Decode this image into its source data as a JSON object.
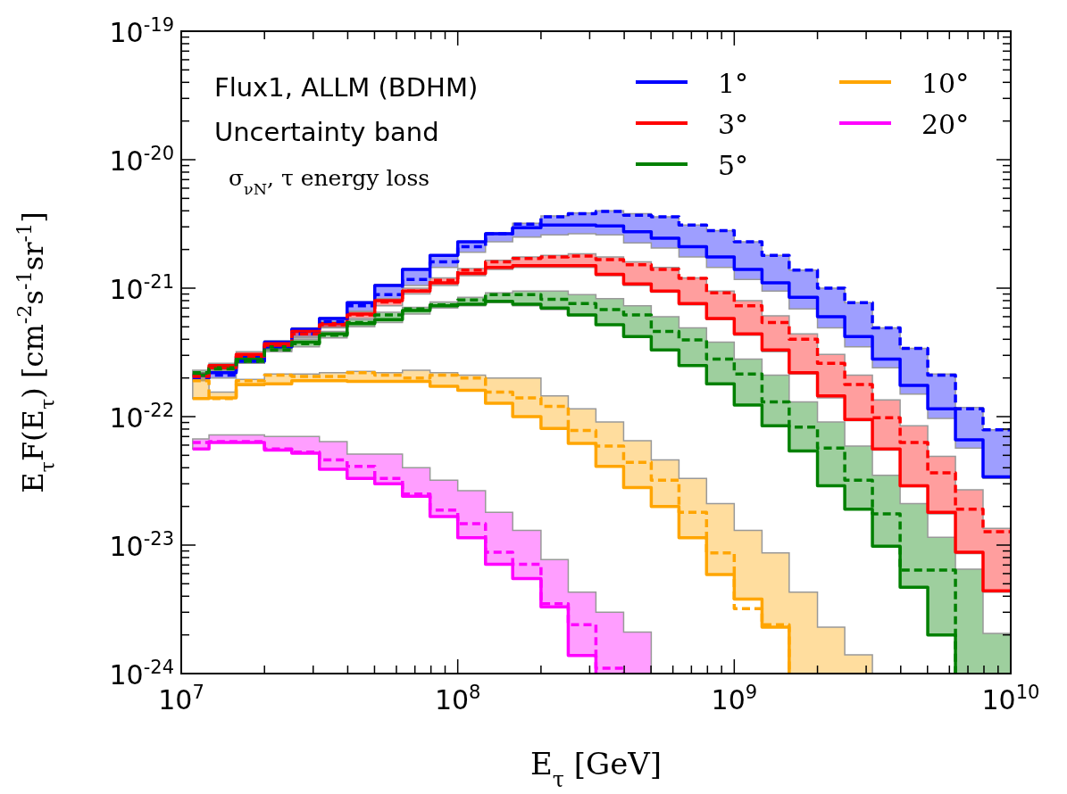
{
  "chart_data": {
    "type": "step",
    "xlabel": "E$_{τ}$ [GeV]",
    "ylabel": "E$_{τ}$F(E$_{τ}$) [cm$^{-2}$s$^{-1}$sr$^{-1}$]",
    "annotations": [
      "Flux1, ALLM (BDHM)",
      "Uncertainty band",
      "σ$_{νN}$, τ energy loss"
    ],
    "log": "xy",
    "legend": "top right",
    "xlim": [
      10000000.0,
      10000000000.0
    ],
    "ylim": [
      1e-24,
      1e-19
    ],
    "xticks": [
      {
        "value": 10000000.0,
        "label": "10$^{7}$"
      },
      {
        "value": 20000000.0,
        "label": null
      },
      {
        "value": 30000000.0,
        "label": null
      },
      {
        "value": 40000000.0,
        "label": null
      },
      {
        "value": 50000000.0,
        "label": null
      },
      {
        "value": 60000000.0,
        "label": null
      },
      {
        "value": 70000000.0,
        "label": null
      },
      {
        "value": 80000000.0,
        "label": null
      },
      {
        "value": 90000000.0,
        "label": null
      },
      {
        "value": 100000000.0,
        "label": "10$^{8}$"
      },
      {
        "value": 200000000.0,
        "label": null
      },
      {
        "value": 300000000.0,
        "label": null
      },
      {
        "value": 400000000.0,
        "label": null
      },
      {
        "value": 500000000.0,
        "label": null
      },
      {
        "value": 600000000.0,
        "label": null
      },
      {
        "value": 700000000.0,
        "label": null
      },
      {
        "value": 800000000.0,
        "label": null
      },
      {
        "value": 900000000.0,
        "label": null
      },
      {
        "value": 1000000000.0,
        "label": "10$^{9}$"
      },
      {
        "value": 2000000000.0,
        "label": null
      },
      {
        "value": 3000000000.0,
        "label": null
      },
      {
        "value": 4000000000.0,
        "label": null
      },
      {
        "value": 5000000000.0,
        "label": null
      },
      {
        "value": 6000000000.0,
        "label": null
      },
      {
        "value": 7000000000.0,
        "label": null
      },
      {
        "value": 8000000000.0,
        "label": null
      },
      {
        "value": 9000000000.0,
        "label": null
      },
      {
        "value": 10000000000.0,
        "label": "10$^{10}$"
      }
    ],
    "yticks": [
      {
        "value": 1e-24,
        "label": "10$^{-24}$"
      },
      {
        "value": 2e-24,
        "label": null
      },
      {
        "value": 3e-24,
        "label": null
      },
      {
        "value": 4e-24,
        "label": null
      },
      {
        "value": 5e-24,
        "label": null
      },
      {
        "value": 6e-24,
        "label": null
      },
      {
        "value": 7e-24,
        "label": null
      },
      {
        "value": 8e-24,
        "label": null
      },
      {
        "value": 9e-24,
        "label": null
      },
      {
        "value": 1e-23,
        "label": "10$^{-23}$"
      },
      {
        "value": 2e-23,
        "label": null
      },
      {
        "value": 3e-23,
        "label": null
      },
      {
        "value": 4e-23,
        "label": null
      },
      {
        "value": 5e-23,
        "label": null
      },
      {
        "value": 6e-23,
        "label": null
      },
      {
        "value": 7e-23,
        "label": null
      },
      {
        "value": 8e-23,
        "label": null
      },
      {
        "value": 9e-23,
        "label": null
      },
      {
        "value": 1e-22,
        "label": "10$^{-22}$"
      },
      {
        "value": 2e-22,
        "label": null
      },
      {
        "value": 3e-22,
        "label": null
      },
      {
        "value": 4e-22,
        "label": null
      },
      {
        "value": 5e-22,
        "label": null
      },
      {
        "value": 6e-22,
        "label": null
      },
      {
        "value": 7e-22,
        "label": null
      },
      {
        "value": 8e-22,
        "label": null
      },
      {
        "value": 9e-22,
        "label": null
      },
      {
        "value": 1e-21,
        "label": "10$^{-21}$"
      },
      {
        "value": 2e-21,
        "label": null
      },
      {
        "value": 3e-21,
        "label": null
      },
      {
        "value": 4e-21,
        "label": null
      },
      {
        "value": 5e-21,
        "label": null
      },
      {
        "value": 6e-21,
        "label": null
      },
      {
        "value": 7e-21,
        "label": null
      },
      {
        "value": 8e-21,
        "label": null
      },
      {
        "value": 9e-21,
        "label": null
      },
      {
        "value": 1e-20,
        "label": "10$^{-20}$"
      },
      {
        "value": 2e-20,
        "label": null
      },
      {
        "value": 3e-20,
        "label": null
      },
      {
        "value": 4e-20,
        "label": null
      },
      {
        "value": 5e-20,
        "label": null
      },
      {
        "value": 6e-20,
        "label": null
      },
      {
        "value": 7e-20,
        "label": null
      },
      {
        "value": 8e-20,
        "label": null
      },
      {
        "value": 9e-20,
        "label": null
      },
      {
        "value": 1e-19,
        "label": "10$^{-19}$"
      }
    ],
    "x": [
      11000000.0,
      12600000.0,
      15800000.0,
      20000000.0,
      25100000.0,
      31600000.0,
      39800000.0,
      50100000.0,
      63100000.0,
      79400000.0,
      100000000.0,
      126000000.0,
      158000000.0,
      200000000.0,
      251000000.0,
      316000000.0,
      398000000.0,
      501000000.0,
      631000000.0,
      794000000.0,
      1000000000.0,
      1260000000.0,
      1580000000.0,
      2000000000.0,
      2510000000.0,
      3160000000.0,
      3980000000.0,
      5010000000.0,
      6310000000.0,
      7940000000.0,
      10000000000.0
    ],
    "series": [
      {
        "name": "1°",
        "color": "#0000ff",
        "values": [
          2.1e-22,
          2.2e-22,
          2.9e-22,
          3.8e-22,
          4.8e-22,
          5.8e-22,
          7.7e-22,
          1.05e-21,
          1.4e-21,
          1.8e-21,
          2.3e-21,
          2.65e-21,
          2.95e-21,
          3.1e-21,
          3.1e-21,
          3.05e-21,
          2.75e-21,
          2.45e-21,
          2.1e-21,
          1.75e-21,
          1.4e-21,
          1.1e-21,
          8.5e-22,
          6e-22,
          4.2e-22,
          2.8e-22,
          1.75e-22,
          1.15e-22,
          6.6e-23,
          3.4e-23,
          3.4e-23
        ],
        "lower": [
          1.9e-22,
          2e-22,
          2.6e-22,
          3.3e-22,
          4.1e-22,
          5e-22,
          6.6e-22,
          8e-22,
          1.05e-21,
          1.45e-21,
          1.9e-21,
          2.3e-21,
          2.5e-21,
          2.6e-21,
          2.65e-21,
          2.6e-21,
          2.25e-21,
          2.05e-21,
          1.75e-21,
          1.45e-21,
          1.17e-21,
          9.5e-22,
          6.9e-22,
          4.9e-22,
          3.5e-22,
          2.4e-22,
          1.5e-22,
          9.7e-23,
          5.7e-23,
          3.3e-23,
          3.3e-23
        ],
        "upper": [
          2.2e-22,
          2.3e-22,
          3e-22,
          3.9e-22,
          4.9e-22,
          5.9e-22,
          7.8e-22,
          1.07e-21,
          1.42e-21,
          1.8e-21,
          2.3e-21,
          2.7e-21,
          3.2e-21,
          3.65e-21,
          3.85e-21,
          4e-21,
          3.8e-21,
          3.6e-21,
          3.1e-21,
          2.8e-21,
          2.3e-21,
          1.8e-21,
          1.38e-21,
          1e-21,
          7.7e-22,
          4.9e-22,
          3.4e-22,
          2.15e-22,
          1.18e-22,
          7.9e-23,
          7.9e-23
        ]
      },
      {
        "color": "#0000ff",
        "line_style": "dashed",
        "values": [
          2e-22,
          2.1e-22,
          2.7e-22,
          3.5e-22,
          4.4e-22,
          5.5e-22,
          7.3e-22,
          8.9e-22,
          1.17e-21,
          1.6e-21,
          2.1e-21,
          2.65e-21,
          3.15e-21,
          3.6e-21,
          3.8e-21,
          3.95e-21,
          3.7e-21,
          3.6e-21,
          3.1e-21,
          2.8e-21,
          2.3e-21,
          1.8e-21,
          1.38e-21,
          1e-21,
          7.7e-22,
          4.9e-22,
          3.4e-22,
          2.1e-22,
          1.15e-22,
          7.9e-23,
          7.9e-23
        ]
      },
      {
        "name": "3°",
        "color": "#ff0000",
        "values": [
          2.1e-22,
          2.5e-22,
          3.05e-22,
          3.7e-22,
          4.6e-22,
          5.3e-22,
          6.3e-22,
          8e-22,
          9.5e-22,
          1.1e-21,
          1.3e-21,
          1.45e-21,
          1.5e-21,
          1.5e-21,
          1.5e-21,
          1.28e-21,
          1.08e-21,
          9.5e-22,
          7.6e-22,
          5.8e-22,
          4.4e-22,
          3.3e-22,
          2.2e-22,
          1.45e-22,
          9.5e-23,
          5.6e-23,
          2.9e-23,
          1.8e-23,
          8.8e-24,
          4.4e-24,
          4.4e-24
        ],
        "lower": [
          1.95e-22,
          2.3e-22,
          2.8e-22,
          3.4e-22,
          4.2e-22,
          4.9e-22,
          5.8e-22,
          7.3e-22,
          9e-22,
          1.05e-21,
          1.25e-21,
          1.4e-21,
          1.45e-21,
          1.45e-21,
          1.45e-21,
          1.25e-21,
          1.05e-21,
          9.3e-22,
          7.4e-22,
          5.7e-22,
          4.3e-22,
          3.2e-22,
          2.15e-22,
          1.4e-22,
          9.3e-23,
          5.5e-23,
          2.85e-23,
          1.75e-23,
          8.6e-24,
          4.3e-24,
          4.3e-24
        ],
        "upper": [
          2.2e-22,
          2.6e-22,
          3.2e-22,
          3.8e-22,
          4.8e-22,
          5.5e-22,
          6.6e-22,
          8.3e-22,
          1e-21,
          1.2e-21,
          1.42e-21,
          1.65e-21,
          1.75e-21,
          1.8e-21,
          1.85e-21,
          1.75e-21,
          1.6e-21,
          1.45e-21,
          1.2e-21,
          9.5e-22,
          8e-22,
          6.1e-22,
          4.4e-22,
          3.05e-22,
          2.1e-22,
          1.35e-22,
          8.5e-23,
          4.9e-23,
          2.7e-23,
          1.35e-23,
          1.35e-23
        ]
      },
      {
        "color": "#ff0000",
        "line_style": "dashed",
        "values": [
          2.05e-22,
          2.4e-22,
          2.95e-22,
          3.6e-22,
          4.4e-22,
          5.2e-22,
          6.2e-22,
          7.8e-22,
          9.5e-22,
          1.15e-21,
          1.38e-21,
          1.6e-21,
          1.7e-21,
          1.75e-21,
          1.78e-21,
          1.67e-21,
          1.52e-21,
          1.4e-21,
          1.19e-21,
          9.2e-22,
          7.3e-22,
          5.4e-22,
          4e-22,
          2.6e-22,
          1.78e-22,
          9.8e-23,
          6.3e-23,
          3.65e-23,
          1.9e-23,
          1.27e-23,
          1.27e-23
        ]
      },
      {
        "name": "5°",
        "color": "#008000",
        "values": [
          2.1e-22,
          2.4e-22,
          2.8e-22,
          3.5e-22,
          3.8e-22,
          4.4e-22,
          5.3e-22,
          5.7e-22,
          6.7e-22,
          7.3e-22,
          7.5e-22,
          7.9e-22,
          7.5e-22,
          7e-22,
          6.2e-22,
          5.2e-22,
          4.2e-22,
          3.3e-22,
          2.5e-22,
          1.8e-22,
          1.23e-22,
          8.5e-23,
          5.4e-23,
          2.9e-23,
          1.9e-23,
          9.8e-24,
          4.7e-24,
          2e-24,
          1e-24,
          null,
          null
        ],
        "lower": [
          2e-22,
          2.3e-22,
          2.6e-22,
          3.2e-22,
          3.5e-22,
          4.1e-22,
          5e-22,
          5.4e-22,
          6.3e-22,
          7e-22,
          7.3e-22,
          7.7e-22,
          7.3e-22,
          6.8e-22,
          6.1e-22,
          5.2e-22,
          4.2e-22,
          3.3e-22,
          2.5e-22,
          1.8e-22,
          1.23e-22,
          8.5e-23,
          5.4e-23,
          2.9e-23,
          1.9e-23,
          9.8e-24,
          4.7e-24,
          2e-24,
          1e-24,
          1e-24,
          1e-24
        ],
        "upper": [
          2.3e-22,
          2.5e-22,
          2.95e-22,
          3.7e-22,
          4e-22,
          4.6e-22,
          5.7e-22,
          6.5e-22,
          7.1e-22,
          7.8e-22,
          8.5e-22,
          9.2e-22,
          9.5e-22,
          9.5e-22,
          8.9e-22,
          8.3e-22,
          7.3e-22,
          6e-22,
          4.9e-22,
          3.8e-22,
          2.8e-22,
          2.1e-22,
          1.3e-22,
          9.1e-23,
          5.9e-23,
          3.5e-23,
          2.1e-23,
          1.15e-23,
          6.5e-24,
          2.05e-24,
          2.05e-24
        ]
      },
      {
        "color": "#008000",
        "line_style": "dashed",
        "values": [
          2.2e-22,
          2.35e-22,
          2.7e-22,
          3.3e-22,
          3.7e-22,
          4.3e-22,
          5.4e-22,
          6.2e-22,
          6.9e-22,
          7.4e-22,
          8.1e-22,
          8.9e-22,
          8.9e-22,
          8.2e-22,
          7.6e-22,
          6.8e-22,
          6.2e-22,
          4.6e-22,
          3.95e-22,
          2.8e-22,
          2.15e-22,
          1.3e-22,
          8.3e-23,
          5.7e-23,
          3.2e-23,
          1.75e-23,
          6.4e-24,
          6.4e-24,
          1e-24,
          null,
          null
        ]
      },
      {
        "name": "10°",
        "color": "#ffa500",
        "values": [
          1.38e-22,
          1.4e-22,
          1.78e-22,
          1.8e-22,
          1.9e-22,
          1.9e-22,
          1.88e-22,
          1.88e-22,
          1.88e-22,
          1.72e-22,
          1.6e-22,
          1.27e-22,
          1e-22,
          8.1e-23,
          6.2e-23,
          4.1e-23,
          2.8e-23,
          2e-23,
          1.14e-23,
          5.9e-24,
          3.8e-24,
          2.3e-24,
          1e-24,
          null,
          null,
          null,
          null,
          null,
          null,
          null,
          null
        ],
        "lower": [
          1.38e-22,
          1.4e-22,
          1.75e-22,
          1.8e-22,
          1.9e-22,
          1.9e-22,
          1.88e-22,
          1.88e-22,
          1.88e-22,
          1.72e-22,
          1.6e-22,
          1.27e-22,
          1e-22,
          8.1e-23,
          6.2e-23,
          4.1e-23,
          2.8e-23,
          2e-23,
          1.14e-23,
          5.9e-24,
          3.8e-24,
          2.3e-24,
          1e-24,
          1e-24,
          1e-24,
          1e-24,
          null,
          null,
          null,
          null,
          null
        ],
        "upper": [
          2e-22,
          1.55e-22,
          1.95e-22,
          2.15e-22,
          2.15e-22,
          2.2e-22,
          2.25e-22,
          2.2e-22,
          2.3e-22,
          2.2e-22,
          2.1e-22,
          2e-22,
          2e-22,
          1.45e-22,
          1.15e-22,
          9.1e-23,
          6.5e-23,
          4.6e-23,
          3.3e-23,
          2.1e-23,
          1.3e-23,
          8.7e-24,
          4.3e-24,
          2.3e-24,
          1.4e-24,
          1e-24,
          null,
          null,
          null,
          null,
          null
        ]
      },
      {
        "color": "#ffa500",
        "line_style": "dashed",
        "values": [
          1.9e-22,
          1.38e-22,
          1.9e-22,
          2.1e-22,
          2.05e-22,
          2.05e-22,
          2.2e-22,
          2.1e-22,
          2e-22,
          2.1e-22,
          2e-22,
          1.55e-22,
          1.4e-22,
          1.2e-22,
          7.8e-23,
          5.9e-23,
          4.4e-23,
          3.2e-23,
          1.8e-23,
          8.7e-24,
          3.2e-24,
          2.4e-24,
          1e-24,
          null,
          null,
          null,
          null,
          null,
          null,
          null,
          null
        ]
      },
      {
        "name": "20°",
        "color": "#ff00ff",
        "values": [
          5.6e-23,
          6.3e-23,
          6.3e-23,
          5.5e-23,
          5.2e-23,
          3.9e-23,
          3.3e-23,
          3e-23,
          2.4e-23,
          1.67e-23,
          1.14e-23,
          7.1e-24,
          5.5e-24,
          3.3e-24,
          1.38e-24,
          1e-24,
          null,
          null,
          null,
          null,
          null,
          null,
          null,
          null,
          null,
          null,
          null,
          null,
          null,
          null,
          null
        ],
        "lower": [
          5.6e-23,
          6.3e-23,
          6.3e-23,
          5.5e-23,
          5.2e-23,
          3.9e-23,
          3.3e-23,
          3e-23,
          2.4e-23,
          1.67e-23,
          1.14e-23,
          7.1e-24,
          5.5e-24,
          3.3e-24,
          1.38e-24,
          1e-24,
          1e-24,
          1e-24,
          null,
          null,
          null,
          null,
          null,
          null,
          null,
          null,
          null,
          null,
          null,
          null,
          null
        ],
        "upper": [
          6.7e-23,
          7.2e-23,
          7.2e-23,
          7e-23,
          7e-23,
          6.4e-23,
          5.1e-23,
          5.1e-23,
          4e-23,
          3.2e-23,
          2.65e-23,
          1.8e-23,
          1.3e-23,
          7.7e-24,
          4.3e-24,
          3e-24,
          2.1e-24,
          1e-24,
          null,
          null,
          null,
          null,
          null,
          null,
          null,
          null,
          null,
          null,
          null,
          null,
          null
        ]
      },
      {
        "color": "#ff00ff",
        "line_style": "dashed",
        "values": [
          6.3e-23,
          6.4e-23,
          6.4e-23,
          5.6e-23,
          5.3e-23,
          4.6e-23,
          4.1e-23,
          3.3e-23,
          2.5e-23,
          1.87e-23,
          1.47e-23,
          8.8e-24,
          7.1e-24,
          3.5e-24,
          2.4e-24,
          1.1e-24,
          1e-24,
          null,
          null,
          null,
          null,
          null,
          null,
          null,
          null,
          null,
          null,
          null,
          null,
          null,
          null
        ]
      }
    ]
  }
}
